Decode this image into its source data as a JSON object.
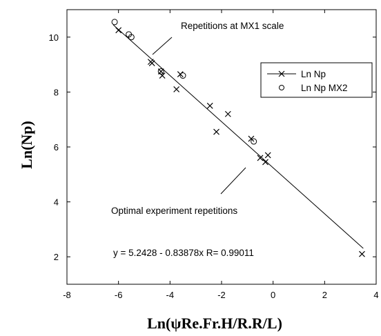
{
  "chart_data": {
    "type": "scatter",
    "title": "",
    "xlabel": "Ln(ψRe.Fr.H/R.R/L)",
    "ylabel": "Ln(Np)",
    "xlim": [
      -8,
      4
    ],
    "ylim": [
      1,
      11
    ],
    "x_ticks": [
      "-8",
      "-6",
      "-4",
      "-2",
      "0",
      "2",
      "4"
    ],
    "y_ticks": [
      "2",
      "4",
      "6",
      "8",
      "10"
    ],
    "x_tick_values": [
      -8,
      -6,
      -4,
      -2,
      0,
      2,
      4
    ],
    "y_tick_values": [
      2,
      4,
      6,
      8,
      10
    ],
    "grid": false,
    "legend_position": "right",
    "series": [
      {
        "name": "Ln Np",
        "marker": "x",
        "points": [
          [
            -6.0,
            10.25
          ],
          [
            -4.75,
            9.1
          ],
          [
            -4.7,
            9.05
          ],
          [
            -4.35,
            8.75
          ],
          [
            -4.3,
            8.6
          ],
          [
            -3.75,
            8.1
          ],
          [
            -3.6,
            8.65
          ],
          [
            -2.45,
            7.5
          ],
          [
            -2.2,
            6.55
          ],
          [
            -1.75,
            7.2
          ],
          [
            -0.85,
            6.3
          ],
          [
            -0.5,
            5.6
          ],
          [
            -0.3,
            5.45
          ],
          [
            -0.2,
            5.7
          ],
          [
            3.45,
            2.1
          ]
        ]
      },
      {
        "name": "Ln Np MX2",
        "marker": "o",
        "points": [
          [
            -6.15,
            10.55
          ],
          [
            -5.6,
            10.1
          ],
          [
            -5.5,
            10.0
          ],
          [
            -4.35,
            8.75
          ],
          [
            -3.5,
            8.6
          ],
          [
            -0.75,
            6.2
          ]
        ]
      }
    ],
    "fit_line": {
      "intercept": 5.2428,
      "slope": -0.83878,
      "x_range": [
        -6.2,
        3.5
      ]
    },
    "annotations": {
      "top": "Repetitions at MX1 scale",
      "bottom": "Optimal experiment repetitions",
      "equation": "y = 5.2428 - 0.83878x    R= 0.99011"
    }
  }
}
